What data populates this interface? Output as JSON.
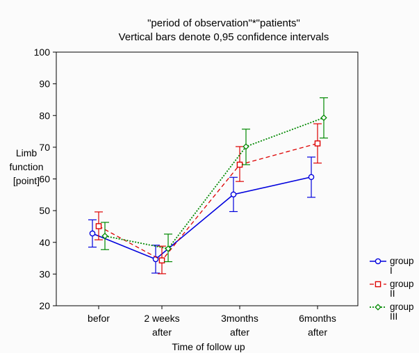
{
  "chart_data": {
    "type": "line",
    "title": "\"period of observation\"*\"patients\"",
    "subtitle": "Vertical bars denote 0,95 confidence intervals",
    "xlabel": "Time of follow up",
    "ylabel": [
      "Limb",
      "function",
      "[point]"
    ],
    "ylim": [
      20,
      100
    ],
    "yticks": [
      20,
      30,
      40,
      50,
      60,
      70,
      80,
      90,
      100
    ],
    "grid": false,
    "legend_position": "bottom-right",
    "categories": [
      [
        "befor"
      ],
      [
        "2 weeks",
        "after"
      ],
      [
        "3months",
        "after"
      ],
      [
        "6months",
        "after"
      ]
    ],
    "series": [
      {
        "name": [
          "group",
          "I"
        ],
        "color": "#0000dd",
        "marker": "circle",
        "line": "solid",
        "values": [
          42.8,
          34.7,
          55.1,
          60.6
        ],
        "ci_low": [
          38.5,
          30.3,
          49.7,
          54.2
        ],
        "ci_high": [
          47.1,
          39.1,
          60.5,
          66.9
        ]
      },
      {
        "name": [
          "group",
          "II"
        ],
        "color": "#dd0000",
        "marker": "square",
        "line": "dashed",
        "values": [
          45.1,
          34.3,
          64.5,
          71.2
        ],
        "ci_low": [
          40.8,
          30.1,
          59.2,
          65.0
        ],
        "ci_high": [
          49.6,
          38.8,
          70.2,
          77.4
        ]
      },
      {
        "name": [
          "group",
          "III"
        ],
        "color": "#008800",
        "marker": "diamond",
        "line": "dotted",
        "values": [
          42.0,
          38.0,
          70.2,
          79.3
        ],
        "ci_low": [
          37.7,
          33.9,
          64.5,
          72.9
        ],
        "ci_high": [
          46.3,
          42.6,
          75.7,
          85.6
        ]
      }
    ]
  }
}
